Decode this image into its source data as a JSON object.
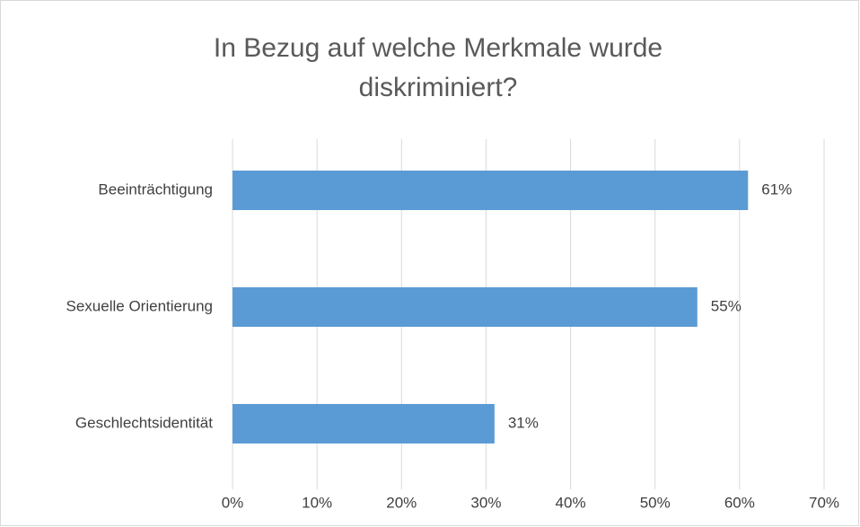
{
  "chart_data": {
    "type": "bar",
    "orientation": "horizontal",
    "title": "In Bezug auf welche Merkmale wurde diskriminiert?",
    "categories": [
      "Beeinträchtigung",
      "Sexuelle Orientierung",
      "Geschlechtsidentität"
    ],
    "values": [
      61,
      55,
      31
    ],
    "value_labels": [
      "61%",
      "55%",
      "31%"
    ],
    "color": "#5b9bd5",
    "xlim": [
      0,
      70
    ],
    "xticks": [
      {
        "value": 0,
        "label": "0%"
      },
      {
        "value": 10,
        "label": "10%"
      },
      {
        "value": 20,
        "label": "20%"
      },
      {
        "value": 30,
        "label": "30%"
      },
      {
        "value": 40,
        "label": "40%"
      },
      {
        "value": 50,
        "label": "50%"
      },
      {
        "value": 60,
        "label": "60%"
      },
      {
        "value": 70,
        "label": "70%"
      }
    ],
    "grid": true
  }
}
